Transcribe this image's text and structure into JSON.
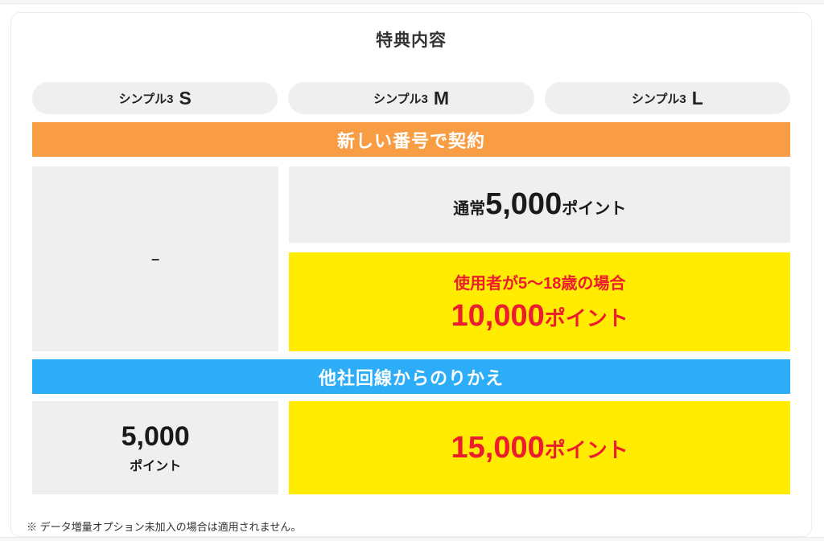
{
  "page": {
    "title": "特典内容",
    "footnote": "※ データ増量オプション未加入の場合は適用されません。"
  },
  "plans": [
    {
      "name": "シンプル3",
      "size": "S"
    },
    {
      "name": "シンプル3",
      "size": "M"
    },
    {
      "name": "シンプル3",
      "size": "L"
    }
  ],
  "new_contract": {
    "banner": "新しい番号で契約",
    "s_cell": "–",
    "ml_normal": {
      "prefix": "通常",
      "value": "5,000",
      "unit": "ポイント"
    },
    "ml_special": {
      "condition": "使用者が5〜18歳の場合",
      "value": "10,000",
      "unit": "ポイント"
    }
  },
  "mnp": {
    "banner": "他社回線からのりかえ",
    "s_cell": {
      "value": "5,000",
      "unit": "ポイント"
    },
    "ml_cell": {
      "value": "15,000",
      "unit": "ポイント"
    }
  },
  "colors": {
    "orange": "#f89d43",
    "blue": "#2dadf7",
    "yellow": "#ffec00",
    "red": "#ed1b2e",
    "cell_gray": "#efefef"
  }
}
